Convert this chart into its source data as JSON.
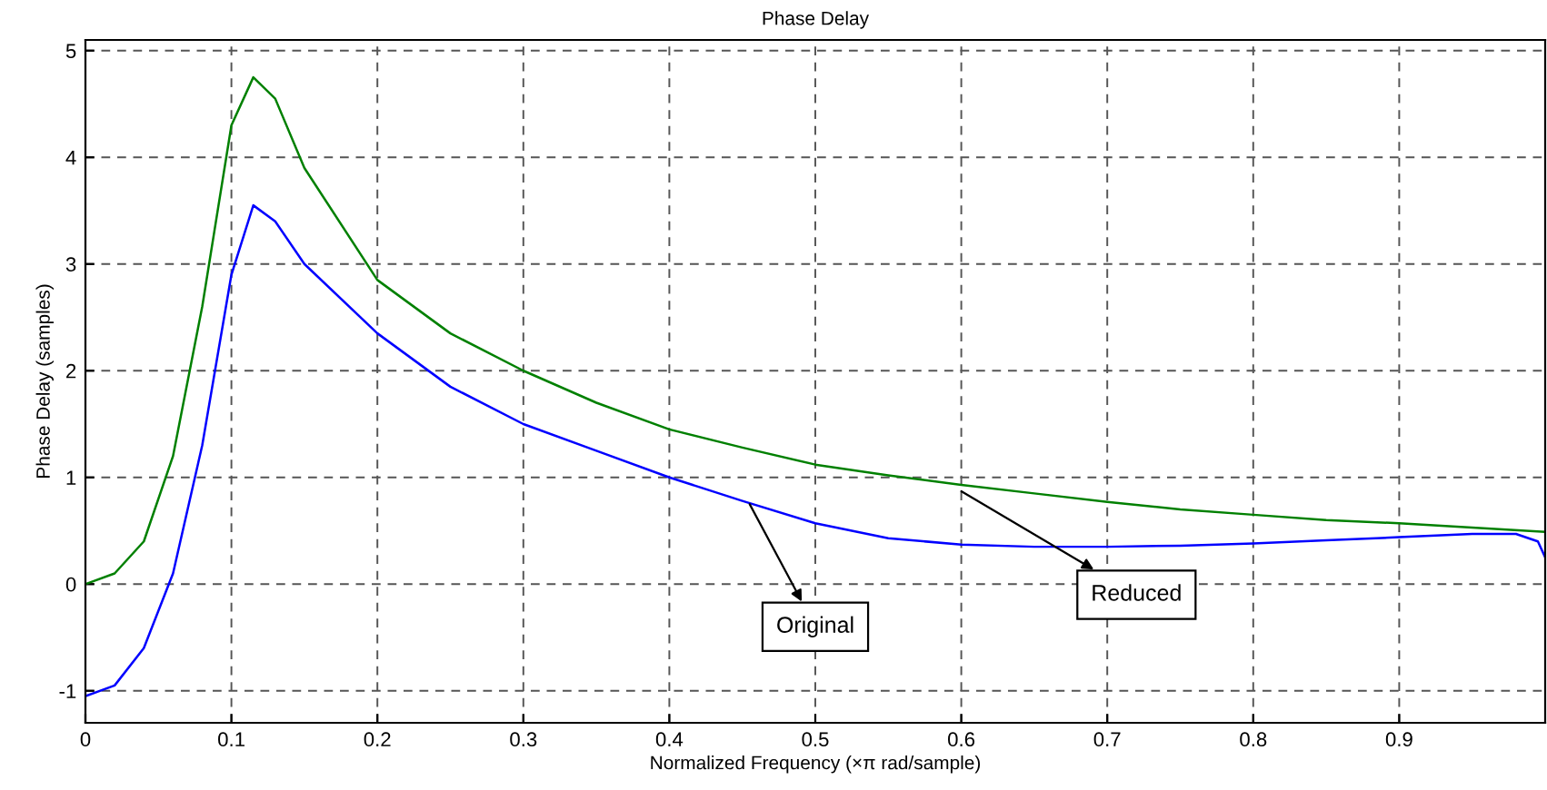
{
  "chart_data": {
    "type": "line",
    "title": "Phase Delay",
    "xlabel": "Normalized Frequency (×π rad/sample)",
    "ylabel": "Phase Delay (samples)",
    "xlim": [
      0,
      1
    ],
    "ylim": [
      -1.3,
      5.1
    ],
    "xticks": [
      0,
      0.1,
      0.2,
      0.3,
      0.4,
      0.5,
      0.6,
      0.7,
      0.8,
      0.9
    ],
    "yticks": [
      -1,
      0,
      1,
      2,
      3,
      4,
      5
    ],
    "grid": true,
    "line_style": "solid",
    "marker": "none",
    "series": [
      {
        "color": "#008000",
        "x": [
          0,
          0.02,
          0.04,
          0.06,
          0.08,
          0.1,
          0.115,
          0.13,
          0.15,
          0.2,
          0.25,
          0.3,
          0.35,
          0.4,
          0.45,
          0.5,
          0.55,
          0.6,
          0.65,
          0.7,
          0.75,
          0.8,
          0.85,
          0.9,
          0.95,
          1.0
        ],
        "values": [
          0,
          0.1,
          0.4,
          1.2,
          2.6,
          4.3,
          4.75,
          4.55,
          3.9,
          2.85,
          2.35,
          2.0,
          1.7,
          1.45,
          1.28,
          1.12,
          1.02,
          0.93,
          0.85,
          0.77,
          0.7,
          0.65,
          0.6,
          0.57,
          0.53,
          0.49
        ]
      },
      {
        "color": "#0000ff",
        "x": [
          0,
          0.02,
          0.04,
          0.06,
          0.08,
          0.1,
          0.115,
          0.13,
          0.15,
          0.2,
          0.25,
          0.3,
          0.35,
          0.4,
          0.45,
          0.5,
          0.55,
          0.6,
          0.65,
          0.7,
          0.75,
          0.8,
          0.85,
          0.9,
          0.95,
          0.98,
          0.995,
          1.0
        ],
        "values": [
          -1.05,
          -0.95,
          -0.6,
          0.1,
          1.3,
          2.9,
          3.55,
          3.4,
          3.0,
          2.35,
          1.85,
          1.5,
          1.25,
          1.0,
          0.78,
          0.57,
          0.43,
          0.37,
          0.35,
          0.35,
          0.36,
          0.38,
          0.41,
          0.44,
          0.47,
          0.47,
          0.4,
          0.25
        ]
      }
    ],
    "annotations": [
      {
        "text": "Original",
        "x": 0.455,
        "y": 0.75
      },
      {
        "text": "Reduced",
        "x": 0.6,
        "y": 0.87
      }
    ]
  }
}
